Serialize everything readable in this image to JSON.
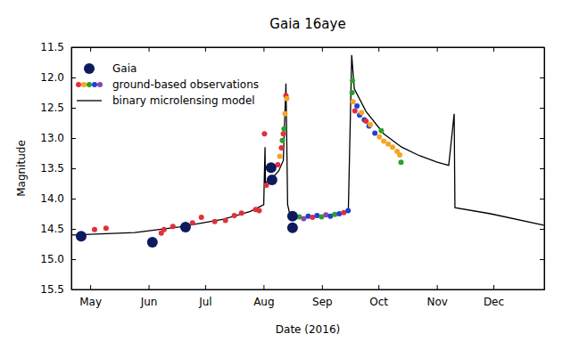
{
  "chart_data": {
    "type": "scatter",
    "title": "Gaia 16aye",
    "x_label": "Date (2016)",
    "y_label": "Magnitude",
    "xlim": [
      112,
      363
    ],
    "xticks": [
      {
        "value": 122,
        "label": "May"
      },
      {
        "value": 153,
        "label": "Jun"
      },
      {
        "value": 183,
        "label": "Jul"
      },
      {
        "value": 214,
        "label": "Aug"
      },
      {
        "value": 245,
        "label": "Sep"
      },
      {
        "value": 275,
        "label": "Oct"
      },
      {
        "value": 306,
        "label": "Nov"
      },
      {
        "value": 336,
        "label": "Dec"
      }
    ],
    "ylim": [
      15.5,
      11.5
    ],
    "yticks": [
      11.5,
      {
        "value": 12,
        "label": "12.0"
      },
      12.5,
      {
        "value": 13,
        "label": "13.0"
      },
      13.5,
      {
        "value": 14,
        "label": "14.0"
      },
      14.5,
      {
        "value": 15,
        "label": "15.0"
      },
      15.5
    ],
    "legend": "upper left",
    "series": [
      {
        "name": "Gaia",
        "type": "scatter",
        "marker": "circle",
        "color": "#0d1a5e",
        "x": [
          117.2,
          155.0,
          172.6,
          218.0,
          218.5,
          229.4,
          229.4
        ],
        "values": [
          14.62,
          14.72,
          14.47,
          13.49,
          13.69,
          14.29,
          14.48
        ]
      },
      {
        "name": "ground-based observations",
        "type": "scatter",
        "marker": "circle",
        "x": [
          124.3,
          130.4,
          159.7,
          161.2,
          165.9,
          176.3,
          181.0,
          188.1,
          193.8,
          198.5,
          202.3,
          209.8,
          211.7,
          214.5,
          215.5,
          221.6,
          222.6,
          223.5,
          224.0,
          224.5,
          224.9,
          225.4,
          225.9,
          226.3,
          229.0,
          230.6,
          233.0,
          235.3,
          237.7,
          240.0,
          242.4,
          244.8,
          247.1,
          249.5,
          251.8,
          254.2,
          256.6,
          258.9,
          261.0,
          261.2,
          261.5,
          262.5,
          263.6,
          265.0,
          266.0,
          267.5,
          268.4,
          270.0,
          270.7,
          273.1,
          275.5,
          276.5,
          277.8,
          280.2,
          282.5,
          284.9,
          286.3,
          287.0
        ],
        "values": [
          14.51,
          14.49,
          14.57,
          14.51,
          14.46,
          14.4,
          14.31,
          14.38,
          14.36,
          14.28,
          14.24,
          14.18,
          14.2,
          12.93,
          13.78,
          13.44,
          13.3,
          13.16,
          13.04,
          12.93,
          12.85,
          12.6,
          12.3,
          12.35,
          14.45,
          14.31,
          14.3,
          14.33,
          14.29,
          14.31,
          14.28,
          14.3,
          14.27,
          14.29,
          14.26,
          14.25,
          14.23,
          14.2,
          12.25,
          12.05,
          12.4,
          12.55,
          12.47,
          12.62,
          12.58,
          12.7,
          12.72,
          12.8,
          12.78,
          12.92,
          12.98,
          12.88,
          13.05,
          13.1,
          13.15,
          13.22,
          13.28,
          13.4
        ],
        "colors": [
          "#e0303c",
          "#e0303c",
          "#e0303c",
          "#e0303c",
          "#e0303c",
          "#e0303c",
          "#e0303c",
          "#e0303c",
          "#e0303c",
          "#e0303c",
          "#e0303c",
          "#e0303c",
          "#e0303c",
          "#e0303c",
          "#e0303c",
          "#e0303c",
          "#f5a623",
          "#e0303c",
          "#2ca02c",
          "#e0303c",
          "#2ca02c",
          "#f5a623",
          "#e0303c",
          "#f5a623",
          "#e0303c",
          "#2240d0",
          "#2ca02c",
          "#8e44ad",
          "#2240d0",
          "#e0303c",
          "#2240d0",
          "#2ca02c",
          "#8e44ad",
          "#2240d0",
          "#2ca02c",
          "#2240d0",
          "#e0303c",
          "#2240d0",
          "#2ca02c",
          "#2ca02c",
          "#f5a623",
          "#e0303c",
          "#2240d0",
          "#2240d0",
          "#f5a623",
          "#2240d0",
          "#e0303c",
          "#2240d0",
          "#f5a623",
          "#2240d0",
          "#f5a623",
          "#2ca02c",
          "#f5a623",
          "#f5a623",
          "#f5a623",
          "#f5a623",
          "#f5a623",
          "#2ca02c"
        ]
      },
      {
        "name": "binary microlensing model",
        "type": "line",
        "line_style": "solid",
        "color": "#000000",
        "x": [
          112.5,
          145.6,
          169.2,
          192.8,
          207.0,
          214.1,
          214.8,
          215.0,
          218.8,
          222.1,
          224.5,
          225.9,
          226.8,
          228.2,
          235.3,
          244.8,
          259.0,
          260.8,
          262.2,
          268.4,
          277.8,
          287.3,
          296.7,
          306.2,
          312.3,
          315.2,
          315.6,
          334.5,
          362.8
        ],
        "values": [
          14.6,
          14.56,
          14.47,
          14.34,
          14.21,
          14.1,
          13.15,
          13.74,
          13.66,
          13.54,
          13.37,
          12.1,
          14.1,
          14.29,
          14.32,
          14.29,
          14.22,
          11.63,
          12.19,
          12.56,
          12.93,
          13.15,
          13.29,
          13.4,
          13.45,
          12.6,
          14.15,
          14.25,
          14.44
        ]
      }
    ]
  }
}
